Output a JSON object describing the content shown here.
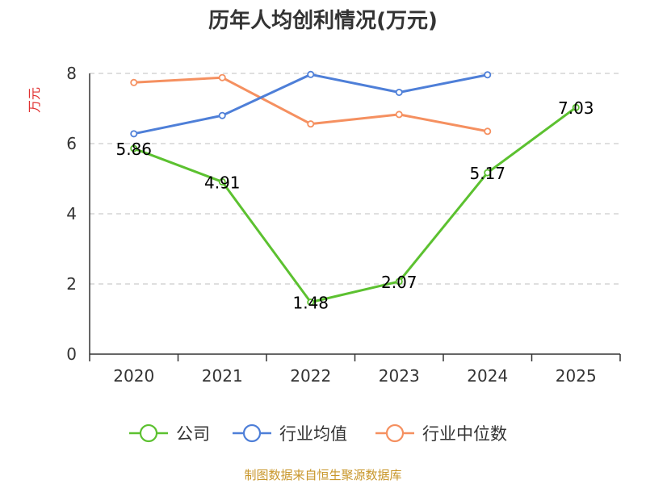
{
  "chart_data": {
    "type": "line",
    "title": "历年人均创利情况(万元)",
    "xlabel": "",
    "ylabel": "万元",
    "categories": [
      "2020",
      "2021",
      "2022",
      "2023",
      "2024",
      "2025"
    ],
    "ylim": [
      0,
      8
    ],
    "yticks": [
      "0",
      "2",
      "4",
      "6",
      "8"
    ],
    "grid": true,
    "legend_position": "bottom",
    "series": [
      {
        "name": "公司",
        "color": "#5cc130",
        "values": [
          5.86,
          4.91,
          1.48,
          2.07,
          5.17,
          7.03
        ],
        "labels": [
          "5.86",
          "4.91",
          "1.48",
          "2.07",
          "5.17",
          "7.03"
        ]
      },
      {
        "name": "行业均值",
        "color": "#4e7fd8",
        "values": [
          6.28,
          6.8,
          7.97,
          7.46,
          7.96,
          null
        ],
        "labels": []
      },
      {
        "name": "行业中位数",
        "color": "#f59060",
        "values": [
          7.74,
          7.88,
          6.56,
          6.83,
          6.35,
          null
        ],
        "labels": []
      }
    ],
    "source": "制图数据来自恒生聚源数据库"
  },
  "colors": {
    "ylabel": "#e03030",
    "source": "#c8962a",
    "axis": "#333333",
    "grid": "#cccccc"
  }
}
